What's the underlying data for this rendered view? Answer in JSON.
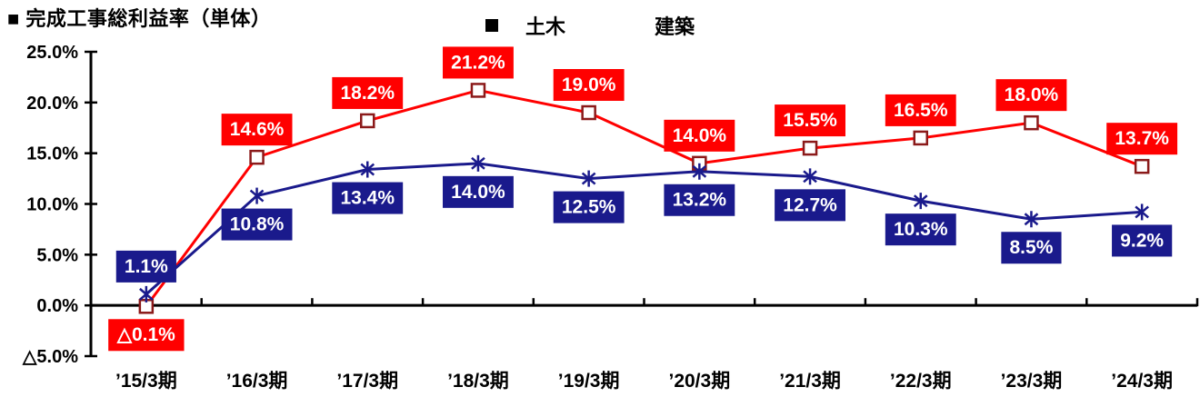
{
  "title": "■ 完成工事総利益率（単体）",
  "legend": {
    "items": [
      {
        "label": "土木"
      },
      {
        "label": "建築"
      }
    ]
  },
  "chart_data": {
    "type": "line",
    "title": "■ 完成工事総利益率（単体）",
    "categories": [
      "’15/3期",
      "’16/3期",
      "’17/3期",
      "’18/3期",
      "’19/3期",
      "’20/3期",
      "’21/3期",
      "’22/3期",
      "’23/3期",
      "’24/3期"
    ],
    "series": [
      {
        "name": "土木",
        "marker": "open-square",
        "line_color": "#FF0000",
        "marker_stroke": "#8B1A1A",
        "marker_fill": "#FFFFFF",
        "label_bg": "#FF0000",
        "label_text_color": "#FFFFFF",
        "values": [
          -0.1,
          14.6,
          18.2,
          21.2,
          19.0,
          14.0,
          15.5,
          16.5,
          18.0,
          13.7
        ],
        "labels": [
          "△0.1%",
          "14.6%",
          "18.2%",
          "21.2%",
          "19.0%",
          "14.0%",
          "15.5%",
          "16.5%",
          "18.0%",
          "13.7%"
        ],
        "label_placement": {
          "default": "above",
          "overrides": {
            "0": "below"
          }
        }
      },
      {
        "name": "建築",
        "marker": "asterisk",
        "line_color": "#1A1A8C",
        "marker_stroke": "#1A1A8C",
        "label_bg": "#1A1A8C",
        "label_text_color": "#FFFFFF",
        "values": [
          1.1,
          10.8,
          13.4,
          14.0,
          12.5,
          13.2,
          12.7,
          10.3,
          8.5,
          9.2
        ],
        "labels": [
          "1.1%",
          "10.8%",
          "13.4%",
          "14.0%",
          "12.5%",
          "13.2%",
          "12.7%",
          "10.3%",
          "8.5%",
          "9.2%"
        ],
        "label_placement": {
          "default": "below",
          "overrides": {
            "0": "above"
          }
        }
      }
    ],
    "ylim": [
      -5,
      25
    ],
    "ytick_step": 5,
    "ytick_labels": [
      "25.0%",
      "20.0%",
      "15.0%",
      "10.0%",
      "5.0%",
      "0.0%",
      "△5.0%"
    ],
    "grid": false,
    "legend_position": "top-center",
    "axis_color": "#000000"
  }
}
